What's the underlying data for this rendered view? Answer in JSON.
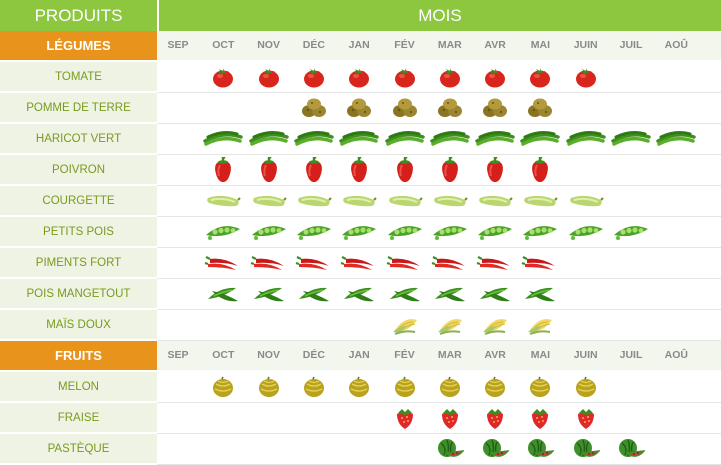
{
  "header": {
    "left_title": "PRODUITS",
    "right_title": "MOIS"
  },
  "months": [
    "SEP",
    "OCT",
    "NOV",
    "DÉC",
    "JAN",
    "FÉV",
    "MAR",
    "AVR",
    "MAI",
    "JUIN",
    "JUIL",
    "AOÛ"
  ],
  "colors": {
    "header_green": "#8dc63f",
    "section_orange": "#e8941c",
    "label_green": "#7a9a1e",
    "label_bg": "#eef3e4"
  },
  "sections": [
    {
      "label": "LÉGUMES",
      "items": [
        {
          "name": "TOMATE",
          "icon": "tomato-icon",
          "months": [
            1,
            2,
            3,
            4,
            5,
            6,
            7,
            8,
            9
          ]
        },
        {
          "name": "POMME DE TERRE",
          "icon": "potato-icon",
          "months": [
            3,
            4,
            5,
            6,
            7,
            8
          ]
        },
        {
          "name": "HARICOT VERT",
          "icon": "green-bean-icon",
          "months": [
            1,
            2,
            3,
            4,
            5,
            6,
            7,
            8,
            9,
            10,
            11
          ]
        },
        {
          "name": "POIVRON",
          "icon": "pepper-icon",
          "months": [
            1,
            2,
            3,
            4,
            5,
            6,
            7,
            8
          ]
        },
        {
          "name": "COURGETTE",
          "icon": "zucchini-icon",
          "months": [
            1,
            2,
            3,
            4,
            5,
            6,
            7,
            8,
            9
          ]
        },
        {
          "name": "PETITS POIS",
          "icon": "pea-pod-icon",
          "months": [
            1,
            2,
            3,
            4,
            5,
            6,
            7,
            8,
            9,
            10
          ]
        },
        {
          "name": "PIMENTS FORT",
          "icon": "chili-icon",
          "months": [
            1,
            2,
            3,
            4,
            5,
            6,
            7,
            8
          ]
        },
        {
          "name": "POIS MANGETOUT",
          "icon": "snow-pea-icon",
          "months": [
            1,
            2,
            3,
            4,
            5,
            6,
            7,
            8
          ]
        },
        {
          "name": "MAÏS DOUX",
          "icon": "corn-icon",
          "months": [
            5,
            6,
            7,
            8
          ]
        }
      ]
    },
    {
      "label": "FRUITS",
      "items": [
        {
          "name": "MELON",
          "icon": "melon-icon",
          "months": [
            1,
            2,
            3,
            4,
            5,
            6,
            7,
            8,
            9
          ]
        },
        {
          "name": "FRAISE",
          "icon": "strawberry-icon",
          "months": [
            5,
            6,
            7,
            8,
            9
          ]
        },
        {
          "name": "PASTÈQUE",
          "icon": "watermelon-icon",
          "months": [
            6,
            7,
            8,
            9,
            10
          ]
        }
      ]
    }
  ]
}
